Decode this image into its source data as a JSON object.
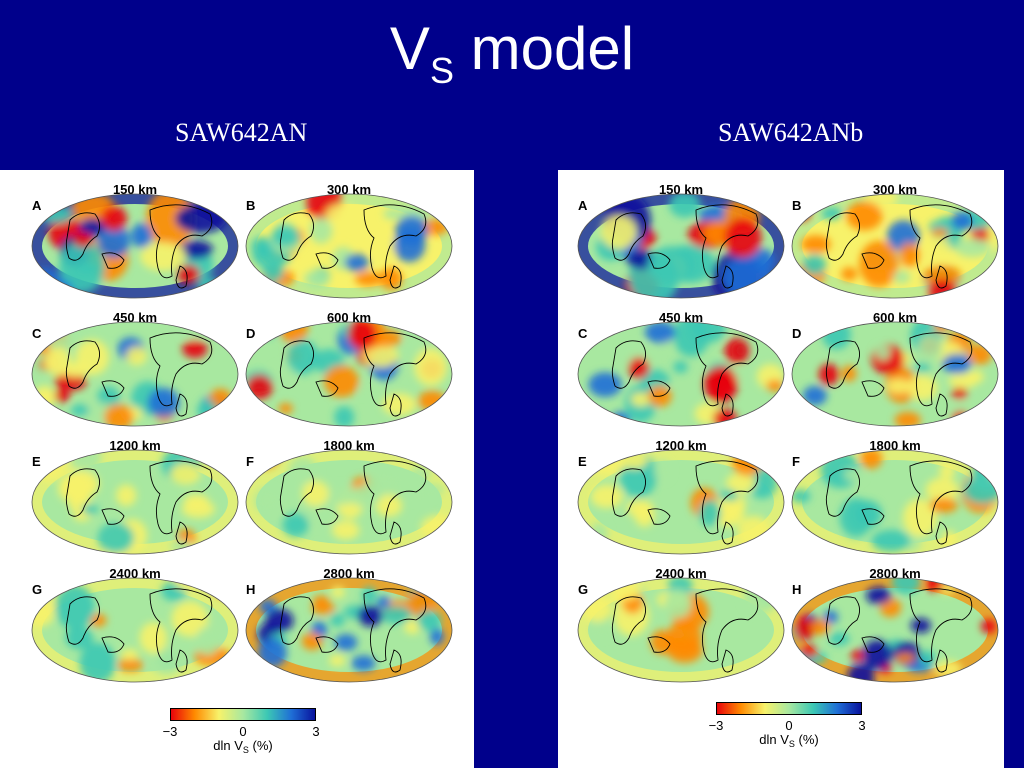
{
  "slide": {
    "title_main": "V",
    "title_sub": "S",
    "title_rest": " model"
  },
  "left": {
    "heading": "SAW642AN",
    "maps": [
      {
        "letter": "A",
        "depth": "150 km",
        "palette": "strong"
      },
      {
        "letter": "B",
        "depth": "300 km",
        "palette": "warm"
      },
      {
        "letter": "C",
        "depth": "450 km",
        "palette": "mixed"
      },
      {
        "letter": "D",
        "depth": "600 km",
        "palette": "mixed"
      },
      {
        "letter": "E",
        "depth": "1200 km",
        "palette": "pale"
      },
      {
        "letter": "F",
        "depth": "1800 km",
        "palette": "pale"
      },
      {
        "letter": "G",
        "depth": "2400 km",
        "palette": "pale"
      },
      {
        "letter": "H",
        "depth": "2800 km",
        "palette": "deep"
      }
    ],
    "colorbar": {
      "min_label": "−3",
      "mid_label": "0",
      "max_label": "3",
      "caption_main": "dln V",
      "caption_sub": "S",
      "caption_rest": " (%)"
    }
  },
  "right": {
    "heading": "SAW642ANb",
    "maps": [
      {
        "letter": "A",
        "depth": "150 km",
        "palette": "strong"
      },
      {
        "letter": "B",
        "depth": "300 km",
        "palette": "warm"
      },
      {
        "letter": "C",
        "depth": "450 km",
        "palette": "mixed"
      },
      {
        "letter": "D",
        "depth": "600 km",
        "palette": "mixed"
      },
      {
        "letter": "E",
        "depth": "1200 km",
        "palette": "pale"
      },
      {
        "letter": "F",
        "depth": "1800 km",
        "palette": "pale"
      },
      {
        "letter": "G",
        "depth": "2400 km",
        "palette": "pale"
      },
      {
        "letter": "H",
        "depth": "2800 km",
        "palette": "deep"
      }
    ],
    "colorbar": {
      "min_label": "−3",
      "mid_label": "0",
      "max_label": "3",
      "caption_main": "dln V",
      "caption_sub": "S",
      "caption_rest": " (%)"
    }
  },
  "colors": {
    "background": "#00008b",
    "panel": "#ffffff",
    "scale": [
      "#e8000b",
      "#ff8a00",
      "#f7f26a",
      "#a8e8a0",
      "#3cc8b4",
      "#1f6fd6",
      "#08109c"
    ]
  }
}
